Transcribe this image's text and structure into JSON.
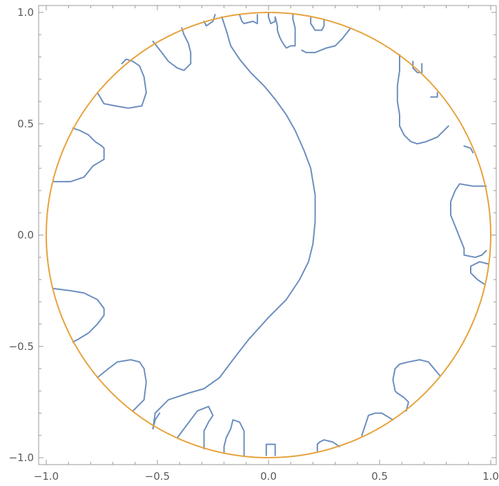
{
  "chart_data": {
    "type": "line",
    "title": "",
    "xlabel": "",
    "ylabel": "",
    "xlim": [
      -1.0,
      1.0
    ],
    "ylim": [
      -1.0,
      1.0
    ],
    "grid": false,
    "x_ticks": [
      {
        "value": -1.0,
        "label": "−1.0"
      },
      {
        "value": -0.5,
        "label": "−0.5"
      },
      {
        "value": 0.0,
        "label": "0.0"
      },
      {
        "value": 0.5,
        "label": "0.5"
      },
      {
        "value": 1.0,
        "label": "1.0"
      }
    ],
    "y_ticks": [
      {
        "value": -1.0,
        "label": "−1.0"
      },
      {
        "value": -0.5,
        "label": "−0.5"
      },
      {
        "value": 0.0,
        "label": "0.0"
      },
      {
        "value": 0.5,
        "label": "0.5"
      },
      {
        "value": 1.0,
        "label": "1.0"
      }
    ],
    "x_minor_step": 0.1,
    "y_minor_step": 0.1,
    "colors": {
      "contour": "#6c8ebf",
      "circle": "#e6a23c"
    },
    "series": [
      {
        "kind": "circle",
        "color": "#e6a23c",
        "center": [
          0.0,
          0.0
        ],
        "radius": 1.0
      },
      {
        "kind": "contour",
        "color": "#6c8ebf",
        "paths": [
          [
            [
              -0.21,
              0.98
            ],
            [
              -0.19,
              0.92
            ],
            [
              -0.17,
              0.85
            ],
            [
              -0.13,
              0.79
            ],
            [
              -0.08,
              0.73
            ],
            [
              -0.02,
              0.67
            ],
            [
              0.03,
              0.61
            ],
            [
              0.08,
              0.54
            ],
            [
              0.12,
              0.47
            ],
            [
              0.16,
              0.38
            ],
            [
              0.19,
              0.3
            ],
            [
              0.21,
              0.18
            ],
            [
              0.21,
              0.06
            ],
            [
              0.2,
              -0.04
            ],
            [
              0.18,
              -0.12
            ],
            [
              0.14,
              -0.2
            ],
            [
              0.08,
              -0.29
            ],
            [
              0.0,
              -0.37
            ],
            [
              -0.09,
              -0.47
            ],
            [
              -0.16,
              -0.56
            ],
            [
              -0.22,
              -0.64
            ],
            [
              -0.29,
              -0.69
            ],
            [
              -0.36,
              -0.71
            ],
            [
              -0.45,
              -0.74
            ],
            [
              -0.51,
              -0.8
            ],
            [
              -0.52,
              -0.87
            ]
          ],
          [
            [
              -0.97,
              0.24
            ],
            [
              -0.89,
              0.24
            ],
            [
              -0.83,
              0.26
            ],
            [
              -0.79,
              0.31
            ],
            [
              -0.74,
              0.34
            ],
            [
              -0.74,
              0.39
            ],
            [
              -0.75,
              0.4
            ],
            [
              -0.78,
              0.42
            ],
            [
              -0.81,
              0.45
            ],
            [
              -0.85,
              0.47
            ],
            [
              -0.88,
              0.48
            ]
          ],
          [
            [
              -0.77,
              0.64
            ],
            [
              -0.74,
              0.59
            ],
            [
              -0.69,
              0.58
            ],
            [
              -0.63,
              0.57
            ],
            [
              -0.57,
              0.58
            ],
            [
              -0.55,
              0.64
            ],
            [
              -0.56,
              0.71
            ],
            [
              -0.58,
              0.76
            ],
            [
              -0.61,
              0.78
            ],
            [
              -0.64,
              0.79
            ],
            [
              -0.66,
              0.77
            ]
          ],
          [
            [
              -0.52,
              0.87
            ],
            [
              -0.48,
              0.82
            ],
            [
              -0.45,
              0.78
            ],
            [
              -0.41,
              0.75
            ],
            [
              -0.38,
              0.74
            ],
            [
              -0.35,
              0.77
            ],
            [
              -0.35,
              0.82
            ],
            [
              -0.36,
              0.86
            ],
            [
              -0.38,
              0.9
            ],
            [
              -0.39,
              0.93
            ]
          ],
          [
            [
              -0.29,
              0.96
            ],
            [
              -0.28,
              0.94
            ],
            [
              -0.25,
              0.96
            ],
            [
              -0.24,
              0.99
            ]
          ],
          [
            [
              -0.13,
              0.99
            ],
            [
              -0.12,
              0.96
            ],
            [
              -0.11,
              0.95
            ],
            [
              -0.07,
              0.96
            ],
            [
              -0.05,
              0.95
            ],
            [
              -0.05,
              0.99
            ]
          ],
          [
            [
              0.0,
              1.0
            ],
            [
              0.0,
              0.98
            ],
            [
              0.01,
              0.95
            ],
            [
              0.03,
              0.96
            ],
            [
              0.03,
              0.98
            ],
            [
              0.04,
              0.94
            ],
            [
              0.04,
              0.92
            ],
            [
              0.05,
              0.89
            ],
            [
              0.06,
              0.87
            ],
            [
              0.08,
              0.84
            ],
            [
              0.1,
              0.85
            ],
            [
              0.12,
              0.85
            ],
            [
              0.12,
              0.89
            ],
            [
              0.12,
              0.93
            ],
            [
              0.11,
              0.97
            ],
            [
              0.11,
              0.99
            ]
          ],
          [
            [
              0.19,
              0.98
            ],
            [
              0.19,
              0.95
            ],
            [
              0.21,
              0.92
            ],
            [
              0.24,
              0.92
            ],
            [
              0.25,
              0.94
            ],
            [
              0.25,
              0.97
            ]
          ],
          [
            [
              0.37,
              0.93
            ],
            [
              0.33,
              0.88
            ],
            [
              0.3,
              0.85
            ],
            [
              0.26,
              0.84
            ],
            [
              0.21,
              0.82
            ],
            [
              0.17,
              0.82
            ],
            [
              0.15,
              0.83
            ]
          ],
          [
            [
              0.59,
              0.81
            ],
            [
              0.59,
              0.74
            ],
            [
              0.58,
              0.67
            ],
            [
              0.58,
              0.6
            ],
            [
              0.59,
              0.54
            ],
            [
              0.59,
              0.49
            ],
            [
              0.61,
              0.45
            ],
            [
              0.64,
              0.42
            ],
            [
              0.67,
              0.41
            ],
            [
              0.71,
              0.42
            ],
            [
              0.76,
              0.44
            ],
            [
              0.79,
              0.47
            ],
            [
              0.81,
              0.49
            ]
          ],
          [
            [
              0.65,
              0.78
            ],
            [
              0.65,
              0.75
            ],
            [
              0.67,
              0.73
            ],
            [
              0.69,
              0.73
            ],
            [
              0.69,
              0.76
            ],
            [
              0.69,
              0.77
            ]
          ],
          [
            [
              0.73,
              0.62
            ],
            [
              0.76,
              0.62
            ],
            [
              0.76,
              0.64
            ]
          ],
          [
            [
              0.88,
              0.4
            ],
            [
              0.91,
              0.39
            ],
            [
              0.92,
              0.37
            ]
          ],
          [
            [
              0.98,
              0.22
            ],
            [
              0.92,
              0.22
            ],
            [
              0.86,
              0.23
            ],
            [
              0.84,
              0.2
            ],
            [
              0.82,
              0.15
            ],
            [
              0.82,
              0.09
            ],
            [
              0.84,
              0.04
            ],
            [
              0.86,
              -0.01
            ],
            [
              0.88,
              -0.06
            ],
            [
              0.88,
              -0.09
            ],
            [
              0.93,
              -0.1
            ],
            [
              0.96,
              -0.09
            ],
            [
              0.98,
              -0.07
            ]
          ],
          [
            [
              0.99,
              -0.13
            ],
            [
              0.95,
              -0.12
            ],
            [
              0.91,
              -0.14
            ],
            [
              0.91,
              -0.17
            ],
            [
              0.94,
              -0.2
            ],
            [
              0.97,
              -0.22
            ]
          ],
          [
            [
              0.77,
              -0.63
            ],
            [
              0.72,
              -0.57
            ],
            [
              0.68,
              -0.56
            ],
            [
              0.63,
              -0.57
            ],
            [
              0.59,
              -0.58
            ],
            [
              0.57,
              -0.6
            ],
            [
              0.56,
              -0.65
            ],
            [
              0.57,
              -0.7
            ],
            [
              0.58,
              -0.71
            ],
            [
              0.61,
              -0.73
            ],
            [
              0.63,
              -0.75
            ],
            [
              0.62,
              -0.79
            ]
          ],
          [
            [
              0.56,
              -0.83
            ],
            [
              0.51,
              -0.8
            ],
            [
              0.48,
              -0.8
            ],
            [
              0.45,
              -0.81
            ],
            [
              0.44,
              -0.84
            ],
            [
              0.43,
              -0.87
            ],
            [
              0.42,
              -0.9
            ]
          ],
          [
            [
              0.32,
              -0.95
            ],
            [
              0.29,
              -0.93
            ],
            [
              0.25,
              -0.92
            ],
            [
              0.23,
              -0.93
            ],
            [
              0.22,
              -0.94
            ],
            [
              0.22,
              -0.97
            ]
          ],
          [
            [
              0.03,
              -0.99
            ],
            [
              0.03,
              -0.94
            ],
            [
              0.0,
              -0.94
            ],
            [
              -0.01,
              -0.94
            ],
            [
              -0.01,
              -0.99
            ]
          ],
          [
            [
              -0.11,
              -0.99
            ],
            [
              -0.11,
              -0.96
            ],
            [
              -0.11,
              -0.92
            ],
            [
              -0.11,
              -0.88
            ],
            [
              -0.13,
              -0.84
            ],
            [
              -0.16,
              -0.83
            ],
            [
              -0.17,
              -0.87
            ],
            [
              -0.19,
              -0.91
            ],
            [
              -0.2,
              -0.95
            ],
            [
              -0.2,
              -0.98
            ]
          ],
          [
            [
              -0.29,
              -0.96
            ],
            [
              -0.29,
              -0.92
            ],
            [
              -0.29,
              -0.88
            ],
            [
              -0.27,
              -0.84
            ],
            [
              -0.25,
              -0.81
            ],
            [
              -0.27,
              -0.77
            ],
            [
              -0.32,
              -0.79
            ],
            [
              -0.35,
              -0.83
            ],
            [
              -0.38,
              -0.87
            ],
            [
              -0.41,
              -0.91
            ]
          ],
          [
            [
              -0.52,
              -0.87
            ],
            [
              -0.51,
              -0.83
            ],
            [
              -0.49,
              -0.8
            ]
          ],
          [
            [
              -0.61,
              -0.79
            ],
            [
              -0.59,
              -0.77
            ],
            [
              -0.56,
              -0.74
            ],
            [
              -0.55,
              -0.66
            ],
            [
              -0.56,
              -0.6
            ],
            [
              -0.58,
              -0.57
            ],
            [
              -0.62,
              -0.56
            ],
            [
              -0.68,
              -0.57
            ],
            [
              -0.72,
              -0.6
            ],
            [
              -0.77,
              -0.64
            ]
          ],
          [
            [
              -0.88,
              -0.48
            ],
            [
              -0.86,
              -0.47
            ],
            [
              -0.81,
              -0.44
            ],
            [
              -0.77,
              -0.4
            ],
            [
              -0.74,
              -0.36
            ],
            [
              -0.74,
              -0.33
            ],
            [
              -0.77,
              -0.29
            ],
            [
              -0.83,
              -0.26
            ],
            [
              -0.89,
              -0.25
            ],
            [
              -0.97,
              -0.24
            ]
          ]
        ]
      }
    ]
  }
}
